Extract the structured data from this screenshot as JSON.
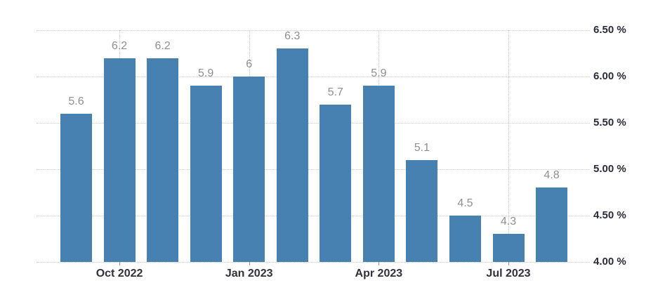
{
  "chart_data": {
    "type": "bar",
    "title": "",
    "values": [
      5.6,
      6.2,
      6.2,
      5.9,
      6,
      6.3,
      5.7,
      5.9,
      5.1,
      4.5,
      4.3,
      4.8
    ],
    "bar_labels": [
      "5.6",
      "6.2",
      "6.2",
      "5.9",
      "6",
      "6.3",
      "5.7",
      "5.9",
      "5.1",
      "4.5",
      "4.3",
      "4.8"
    ],
    "x_ticks": [
      {
        "bar_index": 1,
        "label": "Oct 2022"
      },
      {
        "bar_index": 4,
        "label": "Jan 2023"
      },
      {
        "bar_index": 7,
        "label": "Apr 2023"
      },
      {
        "bar_index": 10,
        "label": "Jul 2023"
      }
    ],
    "y_ticks": [
      {
        "value": 6.5,
        "label": "6.50 %"
      },
      {
        "value": 6.0,
        "label": "6.00 %"
      },
      {
        "value": 5.5,
        "label": "5.50 %"
      },
      {
        "value": 5.0,
        "label": "5.00 %"
      },
      {
        "value": 4.5,
        "label": "4.50 %"
      },
      {
        "value": 4.0,
        "label": "4.00 %"
      }
    ],
    "ylim": [
      4.0,
      6.5
    ],
    "grid": true,
    "legend": "none",
    "colors": {
      "bar": "#4781B1",
      "grid": "#CCCCCC",
      "tick": "#999999",
      "value_label": "#8F8F8F",
      "x_axis_label": "#33303A",
      "y_axis_label": "#2B2B3B",
      "background": "#FFFFFF"
    }
  }
}
